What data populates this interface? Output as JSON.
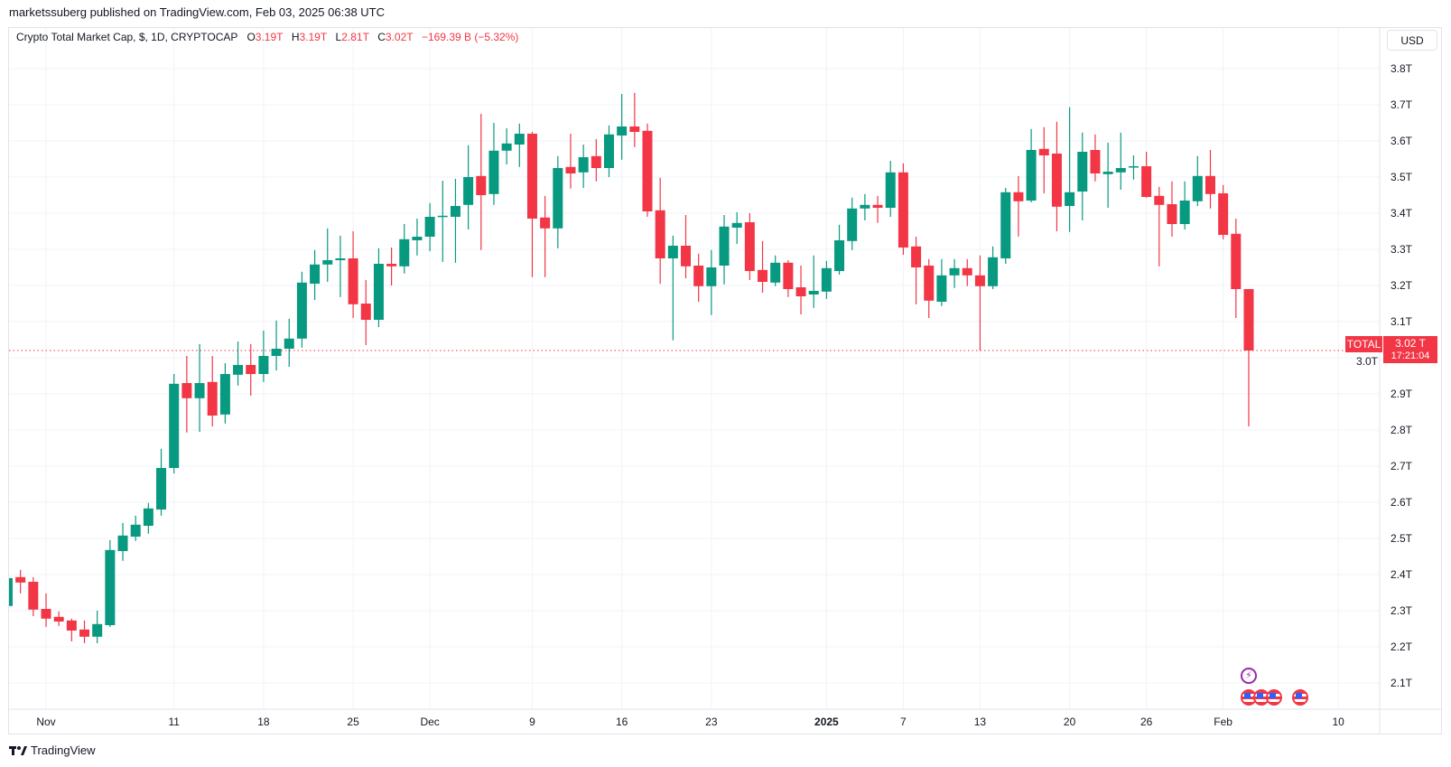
{
  "publish_line": "marketssuberg published on TradingView.com, Feb 03, 2025 06:38 UTC",
  "legend": {
    "title": "Crypto Total Market Cap, $, 1D, CRYPTOCAP",
    "o_label": "O",
    "o_value": "3.19T",
    "h_label": "H",
    "h_value": "3.19T",
    "l_label": "L",
    "l_value": "2.81T",
    "c_label": "C",
    "c_value": "3.02T",
    "change": "−169.39 B (−5.32%)"
  },
  "currency_button": "USD",
  "last_price": {
    "symbol": "TOTAL",
    "price": "3.02 T",
    "countdown": "17:21:04",
    "value": 3.02
  },
  "footer_logo": "TradingView",
  "colors": {
    "up": "#089981",
    "down": "#F23645",
    "grid": "#f0f3fa",
    "text": "#131722"
  },
  "events": {
    "icons": [
      "lightning-event-icon",
      "us-flag-event-icon",
      "us-flag-event-icon",
      "us-flag-event-icon",
      "us-flag-event-icon"
    ]
  },
  "chart_data": {
    "type": "candlestick",
    "title": "Crypto Total Market Cap, $, 1D, CRYPTOCAP",
    "start_date": "2024-10-29",
    "interval": "1D",
    "ylabel": "USD",
    "ylim": [
      2.05,
      3.85
    ],
    "y_ticks": [
      2.1,
      2.2,
      2.3,
      2.4,
      2.5,
      2.6,
      2.7,
      2.8,
      2.9,
      3.0,
      3.1,
      3.2,
      3.3,
      3.4,
      3.5,
      3.6,
      3.7,
      3.8
    ],
    "y_tick_labels": [
      "2.1T",
      "2.2T",
      "2.3T",
      "2.4T",
      "2.5T",
      "2.6T",
      "2.7T",
      "2.8T",
      "2.9T",
      "3.0T",
      "3.1T",
      "3.2T",
      "3.3T",
      "3.4T",
      "3.5T",
      "3.6T",
      "3.7T",
      "3.8T"
    ],
    "x_ticks": [
      {
        "index": 3,
        "label": "Nov",
        "bold": false
      },
      {
        "index": 13,
        "label": "11",
        "bold": false
      },
      {
        "index": 20,
        "label": "18",
        "bold": false
      },
      {
        "index": 27,
        "label": "25",
        "bold": false
      },
      {
        "index": 33,
        "label": "Dec",
        "bold": false
      },
      {
        "index": 41,
        "label": "9",
        "bold": false
      },
      {
        "index": 48,
        "label": "16",
        "bold": false
      },
      {
        "index": 55,
        "label": "23",
        "bold": false
      },
      {
        "index": 64,
        "label": "2025",
        "bold": true
      },
      {
        "index": 70,
        "label": "7",
        "bold": false
      },
      {
        "index": 76,
        "label": "13",
        "bold": false
      },
      {
        "index": 83,
        "label": "20",
        "bold": false
      },
      {
        "index": 89,
        "label": "26",
        "bold": false
      },
      {
        "index": 95,
        "label": "Feb",
        "bold": false
      },
      {
        "index": 104,
        "label": "10",
        "bold": false
      }
    ],
    "ohlc_fields": [
      "open",
      "high",
      "low",
      "close"
    ],
    "ohlc": [
      [
        2.313,
        2.39,
        2.313,
        2.39
      ],
      [
        2.393,
        2.413,
        2.348,
        2.378
      ],
      [
        2.38,
        2.393,
        2.285,
        2.303
      ],
      [
        2.305,
        2.348,
        2.255,
        2.278
      ],
      [
        2.283,
        2.298,
        2.258,
        2.27
      ],
      [
        2.273,
        2.278,
        2.215,
        2.245
      ],
      [
        2.248,
        2.273,
        2.21,
        2.228
      ],
      [
        2.228,
        2.3,
        2.21,
        2.263
      ],
      [
        2.26,
        2.495,
        2.255,
        2.468
      ],
      [
        2.465,
        2.543,
        2.438,
        2.508
      ],
      [
        2.505,
        2.563,
        2.493,
        2.538
      ],
      [
        2.535,
        2.598,
        2.513,
        2.583
      ],
      [
        2.58,
        2.748,
        2.563,
        2.695
      ],
      [
        2.695,
        2.955,
        2.68,
        2.928
      ],
      [
        2.93,
        3.005,
        2.793,
        2.888
      ],
      [
        2.888,
        3.038,
        2.795,
        2.93
      ],
      [
        2.933,
        3.005,
        2.81,
        2.84
      ],
      [
        2.843,
        2.985,
        2.818,
        2.955
      ],
      [
        2.953,
        3.045,
        2.923,
        2.98
      ],
      [
        2.98,
        3.038,
        2.895,
        2.955
      ],
      [
        2.955,
        3.075,
        2.933,
        3.005
      ],
      [
        3.005,
        3.103,
        2.965,
        3.025
      ],
      [
        3.025,
        3.108,
        2.975,
        3.053
      ],
      [
        3.053,
        3.238,
        3.028,
        3.208
      ],
      [
        3.205,
        3.298,
        3.16,
        3.258
      ],
      [
        3.258,
        3.358,
        3.21,
        3.27
      ],
      [
        3.27,
        3.338,
        3.168,
        3.275
      ],
      [
        3.275,
        3.35,
        3.11,
        3.148
      ],
      [
        3.15,
        3.215,
        3.035,
        3.105
      ],
      [
        3.105,
        3.303,
        3.085,
        3.26
      ],
      [
        3.26,
        3.305,
        3.2,
        3.253
      ],
      [
        3.253,
        3.37,
        3.233,
        3.328
      ],
      [
        3.325,
        3.385,
        3.283,
        3.335
      ],
      [
        3.335,
        3.428,
        3.295,
        3.39
      ],
      [
        3.39,
        3.49,
        3.265,
        3.393
      ],
      [
        3.39,
        3.495,
        3.263,
        3.42
      ],
      [
        3.423,
        3.588,
        3.355,
        3.5
      ],
      [
        3.503,
        3.675,
        3.298,
        3.45
      ],
      [
        3.453,
        3.65,
        3.423,
        3.573
      ],
      [
        3.573,
        3.635,
        3.535,
        3.593
      ],
      [
        3.59,
        3.648,
        3.528,
        3.62
      ],
      [
        3.62,
        3.625,
        3.223,
        3.385
      ],
      [
        3.388,
        3.448,
        3.223,
        3.358
      ],
      [
        3.358,
        3.558,
        3.303,
        3.525
      ],
      [
        3.528,
        3.62,
        3.468,
        3.51
      ],
      [
        3.513,
        3.59,
        3.47,
        3.555
      ],
      [
        3.558,
        3.605,
        3.488,
        3.525
      ],
      [
        3.525,
        3.643,
        3.5,
        3.618
      ],
      [
        3.615,
        3.73,
        3.548,
        3.64
      ],
      [
        3.64,
        3.733,
        3.583,
        3.625
      ],
      [
        3.628,
        3.648,
        3.39,
        3.405
      ],
      [
        3.408,
        3.498,
        3.205,
        3.275
      ],
      [
        3.275,
        3.338,
        3.048,
        3.31
      ],
      [
        3.31,
        3.395,
        3.22,
        3.253
      ],
      [
        3.255,
        3.288,
        3.155,
        3.198
      ],
      [
        3.198,
        3.298,
        3.118,
        3.25
      ],
      [
        3.255,
        3.395,
        3.203,
        3.363
      ],
      [
        3.36,
        3.403,
        3.315,
        3.373
      ],
      [
        3.375,
        3.4,
        3.215,
        3.24
      ],
      [
        3.243,
        3.323,
        3.18,
        3.21
      ],
      [
        3.208,
        3.283,
        3.198,
        3.263
      ],
      [
        3.263,
        3.27,
        3.168,
        3.19
      ],
      [
        3.195,
        3.255,
        3.12,
        3.17
      ],
      [
        3.175,
        3.283,
        3.138,
        3.185
      ],
      [
        3.183,
        3.268,
        3.163,
        3.248
      ],
      [
        3.24,
        3.368,
        3.23,
        3.325
      ],
      [
        3.323,
        3.443,
        3.298,
        3.413
      ],
      [
        3.413,
        3.453,
        3.38,
        3.423
      ],
      [
        3.423,
        3.448,
        3.373,
        3.415
      ],
      [
        3.415,
        3.545,
        3.39,
        3.513
      ],
      [
        3.513,
        3.538,
        3.285,
        3.305
      ],
      [
        3.308,
        3.335,
        3.148,
        3.25
      ],
      [
        3.255,
        3.273,
        3.11,
        3.158
      ],
      [
        3.155,
        3.273,
        3.143,
        3.228
      ],
      [
        3.228,
        3.273,
        3.193,
        3.248
      ],
      [
        3.248,
        3.273,
        3.198,
        3.228
      ],
      [
        3.228,
        3.283,
        3.02,
        3.198
      ],
      [
        3.198,
        3.308,
        3.19,
        3.278
      ],
      [
        3.275,
        3.47,
        3.26,
        3.458
      ],
      [
        3.458,
        3.503,
        3.335,
        3.433
      ],
      [
        3.435,
        3.633,
        3.43,
        3.575
      ],
      [
        3.578,
        3.638,
        3.455,
        3.56
      ],
      [
        3.565,
        3.653,
        3.35,
        3.418
      ],
      [
        3.42,
        3.693,
        3.348,
        3.458
      ],
      [
        3.46,
        3.623,
        3.38,
        3.57
      ],
      [
        3.575,
        3.618,
        3.488,
        3.51
      ],
      [
        3.508,
        3.595,
        3.415,
        3.515
      ],
      [
        3.513,
        3.623,
        3.465,
        3.525
      ],
      [
        3.528,
        3.56,
        3.493,
        3.53
      ],
      [
        3.53,
        3.57,
        3.443,
        3.445
      ],
      [
        3.448,
        3.473,
        3.253,
        3.423
      ],
      [
        3.425,
        3.488,
        3.335,
        3.37
      ],
      [
        3.37,
        3.488,
        3.355,
        3.435
      ],
      [
        3.433,
        3.558,
        3.42,
        3.503
      ],
      [
        3.503,
        3.575,
        3.413,
        3.453
      ],
      [
        3.455,
        3.478,
        3.328,
        3.34
      ],
      [
        3.343,
        3.385,
        3.11,
        3.19
      ],
      [
        3.19,
        3.19,
        2.81,
        3.02
      ]
    ]
  }
}
